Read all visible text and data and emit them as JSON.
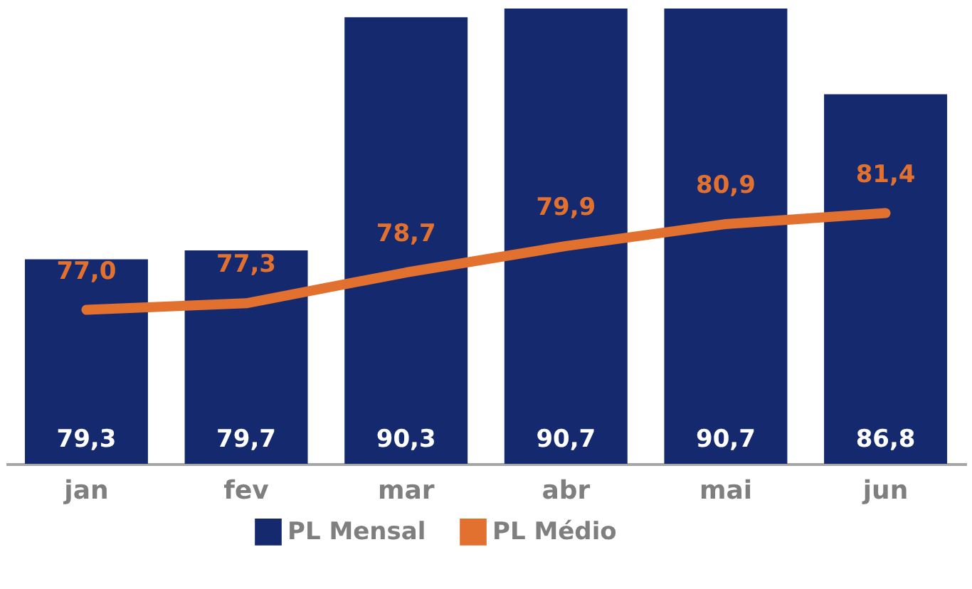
{
  "chart_data": {
    "type": "bar",
    "categories": [
      "jan",
      "fev",
      "mar",
      "abr",
      "mai",
      "jun"
    ],
    "series": [
      {
        "name": "PL Mensal",
        "color": "#15296f",
        "values": [
          79.3,
          79.7,
          90.3,
          90.7,
          90.7,
          86.8
        ],
        "value_labels": [
          "79,3",
          "79,7",
          "90,3",
          "90,7",
          "90,7",
          "86,8"
        ]
      },
      {
        "name": "PL Médio",
        "type": "line",
        "color": "#e2712f",
        "values": [
          77.0,
          77.3,
          78.7,
          79.9,
          80.9,
          81.4
        ],
        "value_labels": [
          "77,0",
          "77,3",
          "78,7",
          "79,9",
          "80,9",
          "81,4"
        ]
      }
    ],
    "ylim": [
      70,
      90.7
    ],
    "legend": "bottom",
    "tick_labels": "x"
  }
}
